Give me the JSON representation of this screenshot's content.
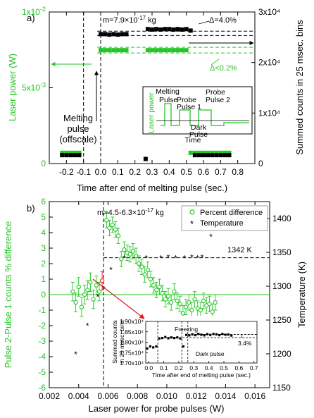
{
  "colors": {
    "green": "#22c522",
    "black": "#000000",
    "red": "#e01b1b"
  },
  "chart_data": [
    {
      "type": "scatter",
      "panel_label": "a)",
      "xlabel": "Time after end of melting pulse (sec.)",
      "ylabel_left": "Laser power (W)",
      "ylabel_right": "Summed counts in 25 msec. bins",
      "xlim": [
        -0.3,
        0.9
      ],
      "ylim_left": [
        0,
        0.01
      ],
      "ylim_right": [
        0,
        30000
      ],
      "x_ticks": [
        "-0.2",
        "-0.1",
        "0.0",
        "0.1",
        "0.2",
        "0.3",
        "0.4",
        "0.5",
        "0.6",
        "0.7",
        "0.8"
      ],
      "y_left_ticks": [
        "0",
        "5x10-3",
        "1x10-2"
      ],
      "y_right_ticks": [
        "0",
        "1x10⁴",
        "2x10⁴",
        "3x10⁴"
      ],
      "annotations": {
        "mass": "m=7.9×10-17 kg",
        "delta_counts": "Δ=4.0%",
        "delta_power": "Δ<0.2%",
        "melting": [
          "Melting",
          "pulse",
          "(offscale)"
        ]
      },
      "series": [
        {
          "name": "Laser power",
          "axis": "left",
          "x": [
            -0.225,
            -0.2,
            -0.175,
            -0.15,
            -0.125,
            0.0,
            0.025,
            0.05,
            0.075,
            0.1,
            0.125,
            0.15,
            0.275,
            0.3,
            0.325,
            0.35,
            0.375,
            0.4,
            0.425,
            0.45,
            0.475,
            0.5,
            0.525,
            0.55,
            0.575,
            0.6,
            0.625,
            0.65,
            0.675,
            0.7,
            0.725,
            0.75
          ],
          "y": [
            0.0008,
            0.0008,
            0.0008,
            0.0008,
            0.0008,
            0.00748,
            0.00748,
            0.00748,
            0.00748,
            0.00748,
            0.00748,
            0.00748,
            0.00748,
            0.00748,
            0.00748,
            0.00748,
            0.00748,
            0.00748,
            0.00748,
            0.00748,
            0.00748,
            0.00748,
            0.0008,
            0.0008,
            0.0008,
            0.0008,
            0.0008,
            0.0008,
            0.0008,
            0.0008,
            0.0008,
            0.0008
          ]
        },
        {
          "name": "Summed counts",
          "axis": "right",
          "x": [
            -0.225,
            -0.2,
            -0.175,
            -0.15,
            -0.125,
            0.0,
            0.025,
            0.05,
            0.075,
            0.1,
            0.125,
            0.15,
            0.2625,
            0.275,
            0.3,
            0.325,
            0.35,
            0.375,
            0.4,
            0.425,
            0.45,
            0.475,
            0.5,
            0.525,
            0.55,
            0.575,
            0.6,
            0.625,
            0.65,
            0.675,
            0.7,
            0.725,
            0.75
          ],
          "y": [
            1100,
            1100,
            1100,
            1100,
            1100,
            24500,
            24500,
            24400,
            24500,
            24400,
            24500,
            24500,
            350,
            25500,
            25400,
            25500,
            25400,
            25500,
            25500,
            25400,
            25500,
            25400,
            25500,
            25200,
            1100,
            1100,
            1100,
            1100,
            1100,
            1100,
            1100,
            1100,
            1100
          ]
        }
      ],
      "inset": {
        "ylabel": "Laser power",
        "xlabel": "Time",
        "labels": [
          "Melting",
          "Pulse",
          "Probe",
          "Pulse 1",
          "Probe",
          "Pulse 2",
          "Dark",
          "Pulse"
        ]
      }
    },
    {
      "type": "scatter",
      "panel_label": "b)",
      "xlabel": "Laser power for probe pulses (W)",
      "ylabel_left": "Pulse 2-Pulse 1 counts % difference",
      "ylabel_right": "Temperature (K)",
      "xlim": [
        0.002,
        0.017
      ],
      "ylim_left": [
        -6,
        6
      ],
      "ylim_right": [
        1150,
        1425
      ],
      "x_ticks": [
        "0.002",
        "0.004",
        "0.006",
        "0.008",
        "0.010",
        "0.012",
        "0.014",
        "0.016"
      ],
      "y_left_ticks": [
        "-6",
        "-5",
        "-4",
        "-3",
        "-2",
        "-1",
        "0",
        "1",
        "2",
        "3",
        "4",
        "5",
        "6"
      ],
      "y_right_ticks": [
        "1150",
        "1200",
        "1250",
        "1300",
        "1350",
        "1400"
      ],
      "annotations": {
        "mass": "m=4.5-6.3×10-17 kg",
        "temp_line": "1342 K",
        "temp_line_value": 1342
      },
      "legend": {
        "placement": "top-right",
        "entries": [
          "Percent difference",
          "Temperature"
        ]
      },
      "series": [
        {
          "name": "Percent difference",
          "axis": "left",
          "x": [
            0.0036,
            0.0038,
            0.004,
            0.0042,
            0.0044,
            0.0046,
            0.0048,
            0.005,
            0.0052,
            0.0054,
            0.0056,
            0.0059,
            0.0061,
            0.0063,
            0.0065,
            0.0067,
            0.0069,
            0.0071,
            0.0073,
            0.0075,
            0.0077,
            0.0079,
            0.0081,
            0.0083,
            0.0085,
            0.0087,
            0.0089,
            0.0091,
            0.0093,
            0.0095,
            0.0097,
            0.0099,
            0.0101,
            0.0103,
            0.0105,
            0.0107,
            0.0109,
            0.0111,
            0.0113,
            0.0115,
            0.0117,
            0.0119,
            0.0121,
            0.0123,
            0.0125,
            0.0127,
            0.0129,
            0.0131,
            0.0133
          ],
          "y": [
            0.2,
            -0.5,
            0.5,
            -0.8,
            0.0,
            0.3,
            0.8,
            -0.3,
            0.6,
            0.2,
            0.9,
            4.8,
            4.3,
            4.5,
            4.2,
            3.8,
            2.3,
            2.9,
            2.7,
            2.6,
            2.8,
            2.5,
            2.0,
            1.8,
            1.3,
            1.6,
            1.0,
            0.6,
            0.3,
            0.5,
            0.1,
            -0.3,
            -0.1,
            -0.5,
            0.2,
            -0.4,
            -0.6,
            -1.2,
            -0.8,
            -0.5,
            -1.0,
            -0.3,
            -0.9,
            -1.0,
            -0.4,
            -0.7,
            -0.6,
            -1.1,
            -0.5
          ],
          "err": [
            0.6,
            0.6,
            0.6,
            0.6,
            0.6,
            0.6,
            0.6,
            0.6,
            0.6,
            0.6,
            0.6,
            0.5,
            0.5,
            0.5,
            0.5,
            0.5,
            0.5,
            0.5,
            0.5,
            0.5,
            0.5,
            0.5,
            0.5,
            0.5,
            0.5,
            0.5,
            0.5,
            0.5,
            0.5,
            0.5,
            0.5,
            0.5,
            0.5,
            0.5,
            0.5,
            0.5,
            0.5,
            0.5,
            0.5,
            0.5,
            0.5,
            0.5,
            0.5,
            0.5,
            0.5,
            0.5,
            0.5,
            0.5,
            0.5
          ]
        },
        {
          "name": "Temperature",
          "axis": "right",
          "x": [
            0.0038,
            0.0046,
            0.0053,
            0.0057,
            0.0062,
            0.0071,
            0.0086,
            0.0096,
            0.0101,
            0.0106,
            0.0112,
            0.0117,
            0.0121,
            0.0124,
            0.013,
            0.0132
          ],
          "y": [
            1200,
            1242,
            1285,
            1297,
            1325,
            1342,
            1342,
            1342,
            1343,
            1342,
            1342,
            1343,
            1342,
            1343,
            1374,
            1383
          ]
        }
      ],
      "inset": {
        "xlabel": "Time after end of melting pulse (sec.)",
        "ylabel": [
          "Summed counts",
          "in 25 msec. bins"
        ],
        "y_ticks": [
          "1.70x10⁴",
          "1.75x10⁴",
          "1.80x10⁴",
          "1.85x10⁴",
          "1.90x10⁴"
        ],
        "x_ticks": [
          "0.0",
          "0.1",
          "0.2",
          "0.3",
          "0.4",
          "0.5",
          "0.6",
          "0.7"
        ],
        "xlim": [
          -0.02,
          0.72
        ],
        "ylim": [
          17000,
          19000
        ],
        "labels": {
          "freezing": "Freezing",
          "dark": "Dark pulse",
          "delta": "3.4%"
        },
        "x": [
          -0.01,
          0.01,
          0.03,
          0.05,
          0.07,
          0.09,
          0.11,
          0.13,
          0.15,
          0.17,
          0.19,
          0.21,
          0.23,
          0.25,
          0.27,
          0.29,
          0.31,
          0.33,
          0.35,
          0.37,
          0.39,
          0.41,
          0.43,
          0.45,
          0.47,
          0.49,
          0.51,
          0.53,
          0.55
        ],
        "y": [
          17700,
          17800,
          17750,
          17800,
          18180,
          18200,
          18250,
          18190,
          18230,
          18200,
          18230,
          18180,
          17800,
          18350,
          18330,
          18380,
          18340,
          18400,
          18360,
          18330,
          18390,
          18350,
          18400,
          18380,
          18340,
          18400,
          18360,
          18370,
          18320
        ]
      }
    }
  ]
}
